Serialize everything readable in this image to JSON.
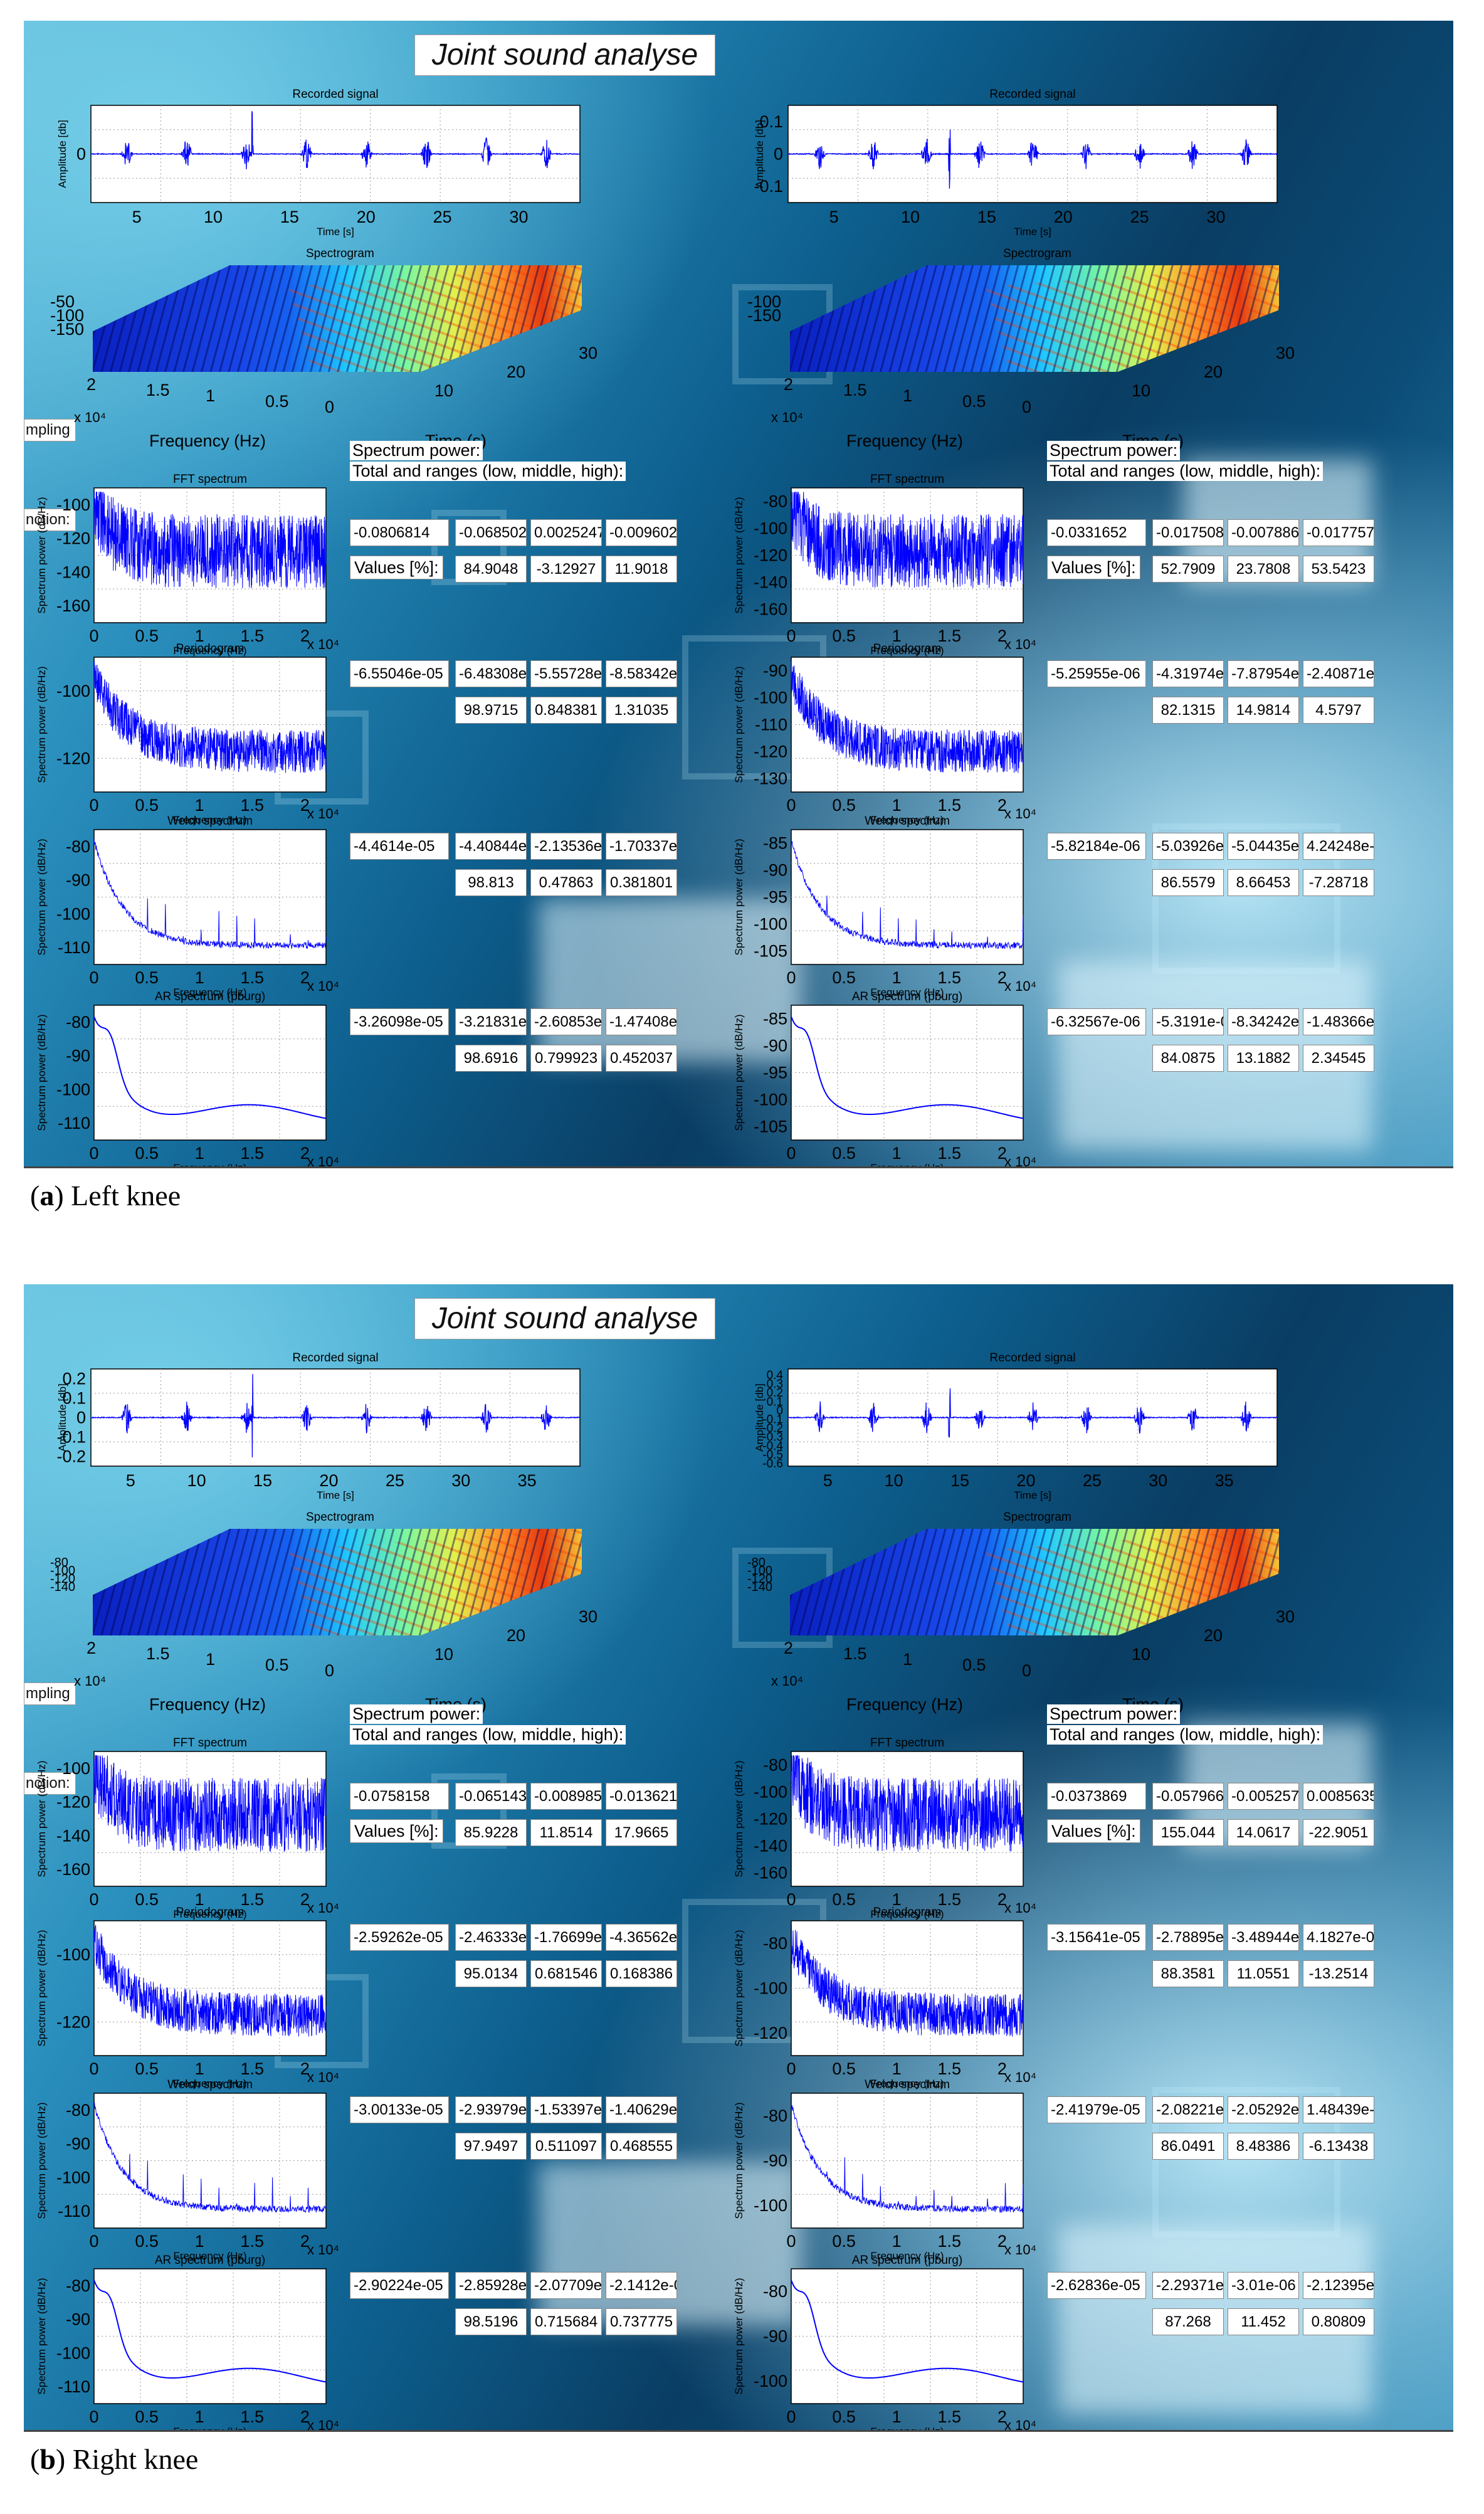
{
  "panels": [
    {
      "app_title": "Joint sound analyse",
      "caption_letter": "a",
      "caption_text": " Left knee",
      "side_tabs": [
        "mpling",
        "nction:"
      ],
      "columns": [
        {
          "recorded": {
            "title": "Recorded signal",
            "ylabel": "Amplitude [db]",
            "xlabel": "Time [s]",
            "xticks": [
              "5",
              "10",
              "15",
              "20",
              "25",
              "30"
            ],
            "yticks": [],
            "zero": "0"
          },
          "spectrogram": {
            "title": "Spectrogram",
            "zticks": [
              "-50",
              "-100",
              "-150"
            ],
            "freq_ticks": [
              "2",
              "1.5",
              "1",
              "0.5",
              "0"
            ],
            "time_ticks": [
              "10",
              "20",
              "30"
            ],
            "origin": "0",
            "exp": "x 10⁴",
            "freq_label": "Frequency (Hz)",
            "time_label": "Time (s)"
          },
          "power": {
            "header1": "Spectrum power:",
            "header2": "Total and ranges (low, middle, high):",
            "values_label": "Values [%]:"
          },
          "rows": [
            {
              "title": "FFT spectrum",
              "ylabel": "Spectrum power (dB/Hz)",
              "xlabel": "Frequency (Hz)",
              "yticks": [
                "-100",
                "-120",
                "-140",
                "-160"
              ],
              "total": "-0.0806814",
              "ranges": [
                "-0.0685023",
                "0.0025247≤",
                "-0.0096025"
              ],
              "percents": [
                "84.9048",
                "-3.12927",
                "11.9018"
              ]
            },
            {
              "title": "Periodogram",
              "ylabel": "Spectrum power (dB/Hz)",
              "xlabel": "Frequency (Hz)",
              "yticks": [
                "-100",
                "-120"
              ],
              "total": "-6.55046e-05",
              "ranges": [
                "-6.48308e-",
                "-5.55728e-",
                "-8.58342e-"
              ],
              "percents": [
                "98.9715",
                "0.848381",
                "1.31035"
              ]
            },
            {
              "title": "Welch spectrum",
              "ylabel": "Spectrum power (dB/Hz)",
              "xlabel": "Frequency (Hz)",
              "yticks": [
                "-80",
                "-90",
                "-100",
                "-110"
              ],
              "total": "-4.4614e-05",
              "ranges": [
                "-4.40844e-",
                "-2.13536e-",
                "-1.70337e-"
              ],
              "percents": [
                "98.813",
                "0.47863",
                "0.381801"
              ]
            },
            {
              "title": "AR spectrum (pburg)",
              "ylabel": "Spectrum power (dB/Hz)",
              "xlabel": "Frequency (Hz)",
              "yticks": [
                "-80",
                "-90",
                "-100",
                "-110"
              ],
              "total": "-3.26098e-05",
              "ranges": [
                "-3.21831e-",
                "-2.60853e-",
                "-1.47408e-"
              ],
              "percents": [
                "98.6916",
                "0.799923",
                "0.452037"
              ]
            }
          ],
          "xticks": [
            "0",
            "0.5",
            "1",
            "1.5",
            "2"
          ],
          "x_exp": "x 10⁴"
        },
        {
          "recorded": {
            "title": "Recorded signal",
            "ylabel": "Amplitude [db]",
            "xlabel": "Time [s]",
            "xticks": [
              "5",
              "10",
              "15",
              "20",
              "25",
              "30"
            ],
            "yticks": [
              "0.1",
              "0",
              "-0.1"
            ],
            "zero": ""
          },
          "spectrogram": {
            "title": "Spectrogram",
            "zticks": [
              "-100",
              "-150"
            ],
            "freq_ticks": [
              "2",
              "1.5",
              "1",
              "0.5",
              "0"
            ],
            "time_ticks": [
              "10",
              "20",
              "30"
            ],
            "origin": "0",
            "exp": "x 10⁴",
            "freq_label": "Frequency (Hz)",
            "time_label": "Time (s)"
          },
          "power": {
            "header1": "Spectrum power:",
            "header2": "Total and ranges (low, middle, high):",
            "values_label": "Values [%]:"
          },
          "rows": [
            {
              "title": "FFT spectrum",
              "ylabel": "Spectrum power (dB/Hz)",
              "xlabel": "Frequency (Hz)",
              "yticks": [
                "-80",
                "-100",
                "-120",
                "-140",
                "-160"
              ],
              "total": "-0.0331652",
              "ranges": [
                "-0.0175082",
                "-0.0078869",
                "-0.0177574"
              ],
              "percents": [
                "52.7909",
                "23.7808",
                "53.5423"
              ]
            },
            {
              "title": "Periodogram",
              "ylabel": "Spectrum power (dB/Hz)",
              "xlabel": "Frequency (Hz)",
              "yticks": [
                "-90",
                "-100",
                "-110",
                "-120",
                "-130"
              ],
              "total": "-5.25955e-06",
              "ranges": [
                "-4.31974e-",
                "-7.87954e-",
                "-2.40871e-"
              ],
              "percents": [
                "82.1315",
                "14.9814",
                "4.5797"
              ]
            },
            {
              "title": "Welch spectrum",
              "ylabel": "Spectrum power (dB/Hz)",
              "xlabel": "Frequency (Hz)",
              "yticks": [
                "-85",
                "-90",
                "-95",
                "-100",
                "-105"
              ],
              "total": "-5.82184e-06",
              "ranges": [
                "-5.03926e-",
                "-5.04435e-",
                "4.24248e-0"
              ],
              "percents": [
                "86.5579",
                "8.66453",
                "-7.28718"
              ]
            },
            {
              "title": "AR spectrum (pburg)",
              "ylabel": "Spectrum power (dB/Hz)",
              "xlabel": "Frequency (Hz)",
              "yticks": [
                "-85",
                "-90",
                "-95",
                "-100",
                "-105"
              ],
              "total": "-6.32567e-06",
              "ranges": [
                "-5.3191e-0",
                "-8.34242e-",
                "-1.48366e-"
              ],
              "percents": [
                "84.0875",
                "13.1882",
                "2.34545"
              ]
            }
          ],
          "xticks": [
            "0",
            "0.5",
            "1",
            "1.5",
            "2"
          ],
          "x_exp": "x 10⁴"
        }
      ]
    },
    {
      "app_title": "Joint sound analyse",
      "caption_letter": "b",
      "caption_text": " Right knee",
      "side_tabs": [
        "mpling",
        "nction:"
      ],
      "columns": [
        {
          "recorded": {
            "title": "Recorded signal",
            "ylabel": "Amplitude [db]",
            "xlabel": "Time [s]",
            "xticks": [
              "5",
              "10",
              "15",
              "20",
              "25",
              "30",
              "35"
            ],
            "yticks": [
              "0.2",
              "0.1",
              "0",
              "-0.1",
              "-0.2"
            ],
            "zero": ""
          },
          "spectrogram": {
            "title": "Spectrogram",
            "zticks": [
              "-80",
              "-100",
              "-120",
              "-140"
            ],
            "freq_ticks": [
              "2",
              "1.5",
              "1",
              "0.5",
              "0"
            ],
            "time_ticks": [
              "10",
              "20",
              "30"
            ],
            "origin": "0",
            "exp": "x 10⁴",
            "freq_label": "Frequency (Hz)",
            "time_label": "Time (s)"
          },
          "power": {
            "header1": "Spectrum power:",
            "header2": "Total and ranges (low, middle, high):",
            "values_label": "Values [%]:"
          },
          "rows": [
            {
              "title": "FFT spectrum",
              "ylabel": "Spectrum power (dB/Hz)",
              "xlabel": "Frequency (Hz)",
              "yticks": [
                "-100",
                "-120",
                "-140",
                "-160"
              ],
              "total": "-0.0758158",
              "ranges": [
                "-0.0651431",
                "-0.0089852",
                "-0.0136214"
              ],
              "percents": [
                "85.9228",
                "11.8514",
                "17.9665"
              ]
            },
            {
              "title": "Periodogram",
              "ylabel": "Spectrum power (dB/Hz)",
              "xlabel": "Frequency (Hz)",
              "yticks": [
                "-100",
                "-120"
              ],
              "total": "-2.59262e-05",
              "ranges": [
                "-2.46333e-",
                "-1.76699e-",
                "-4.36562e-"
              ],
              "percents": [
                "95.0134",
                "0.681546",
                "0.168386"
              ]
            },
            {
              "title": "Welch spectrum",
              "ylabel": "Spectrum power (dB/Hz)",
              "xlabel": "Frequency (Hz)",
              "yticks": [
                "-80",
                "-90",
                "-100",
                "-110"
              ],
              "total": "-3.00133e-05",
              "ranges": [
                "-2.93979e-",
                "-1.53397e-",
                "-1.40629e-"
              ],
              "percents": [
                "97.9497",
                "0.511097",
                "0.468555"
              ]
            },
            {
              "title": "AR spectrum (pburg)",
              "ylabel": "Spectrum power (dB/Hz)",
              "xlabel": "Frequency (Hz)",
              "yticks": [
                "-80",
                "-90",
                "-100",
                "-110"
              ],
              "total": "-2.90224e-05",
              "ranges": [
                "-2.85928e-",
                "-2.07709e-",
                "-2.1412e-0"
              ],
              "percents": [
                "98.5196",
                "0.715684",
                "0.737775"
              ]
            }
          ],
          "xticks": [
            "0",
            "0.5",
            "1",
            "1.5",
            "2"
          ],
          "x_exp": "x 10⁴"
        },
        {
          "recorded": {
            "title": "Recorded signal",
            "ylabel": "Amplitude [db]",
            "xlabel": "Time [s]",
            "xticks": [
              "5",
              "10",
              "15",
              "20",
              "25",
              "30",
              "35"
            ],
            "yticks": [
              "0.4",
              "0.3",
              "0.2",
              "0.1",
              "0",
              "-0.1",
              "-0.2",
              "-0.3",
              "-0.4",
              "-0.5",
              "-0.6"
            ],
            "zero": ""
          },
          "spectrogram": {
            "title": "Spectrogram",
            "zticks": [
              "-80",
              "-100",
              "-120",
              "-140"
            ],
            "freq_ticks": [
              "2",
              "1.5",
              "1",
              "0.5",
              "0"
            ],
            "time_ticks": [
              "10",
              "20",
              "30"
            ],
            "origin": "0",
            "exp": "x 10⁴",
            "freq_label": "Frequency (Hz)",
            "time_label": "Time (s)"
          },
          "power": {
            "header1": "Spectrum power:",
            "header2": "Total and ranges (low, middle, high):",
            "values_label": "Values [%]:"
          },
          "rows": [
            {
              "title": "FFT spectrum",
              "ylabel": "Spectrum power (dB/Hz)",
              "xlabel": "Frequency (Hz)",
              "yticks": [
                "-80",
                "-100",
                "-120",
                "-140",
                "-160"
              ],
              "total": "-0.0373869",
              "ranges": [
                "-0.0579661",
                "-0.0052572",
                "0.0085635"
              ],
              "percents": [
                "155.044",
                "14.0617",
                "-22.9051"
              ]
            },
            {
              "title": "Periodogram",
              "ylabel": "Spectrum power (dB/Hz)",
              "xlabel": "Frequency (Hz)",
              "yticks": [
                "-80",
                "-100",
                "-120"
              ],
              "total": "-3.15641e-05",
              "ranges": [
                "-2.78895e-",
                "-3.48944e-",
                "4.1827e-06"
              ],
              "percents": [
                "88.3581",
                "11.0551",
                "-13.2514"
              ]
            },
            {
              "title": "Welch spectrum",
              "ylabel": "Spectrum power (dB/Hz)",
              "xlabel": "Frequency (Hz)",
              "yticks": [
                "-80",
                "-90",
                "-100"
              ],
              "total": "-2.41979e-05",
              "ranges": [
                "-2.08221e-",
                "-2.05292e-",
                "1.48439e-0"
              ],
              "percents": [
                "86.0491",
                "8.48386",
                "-6.13438"
              ]
            },
            {
              "title": "AR spectrum (pburg)",
              "ylabel": "Spectrum power (dB/Hz)",
              "xlabel": "Frequency (Hz)",
              "yticks": [
                "-80",
                "-90",
                "-100"
              ],
              "total": "-2.62836e-05",
              "ranges": [
                "-2.29371e-",
                "-3.01e-06",
                "-2.12395e-"
              ],
              "percents": [
                "87.268",
                "11.452",
                "0.80809"
              ]
            }
          ],
          "xticks": [
            "0",
            "0.5",
            "1",
            "1.5",
            "2"
          ],
          "x_exp": "x 10⁴"
        }
      ]
    }
  ],
  "colors": {
    "signal": "#0000ff",
    "grid": "#b0b0b0",
    "panel_dark": "#0a3d63",
    "panel_light": "#5fb8d8"
  }
}
